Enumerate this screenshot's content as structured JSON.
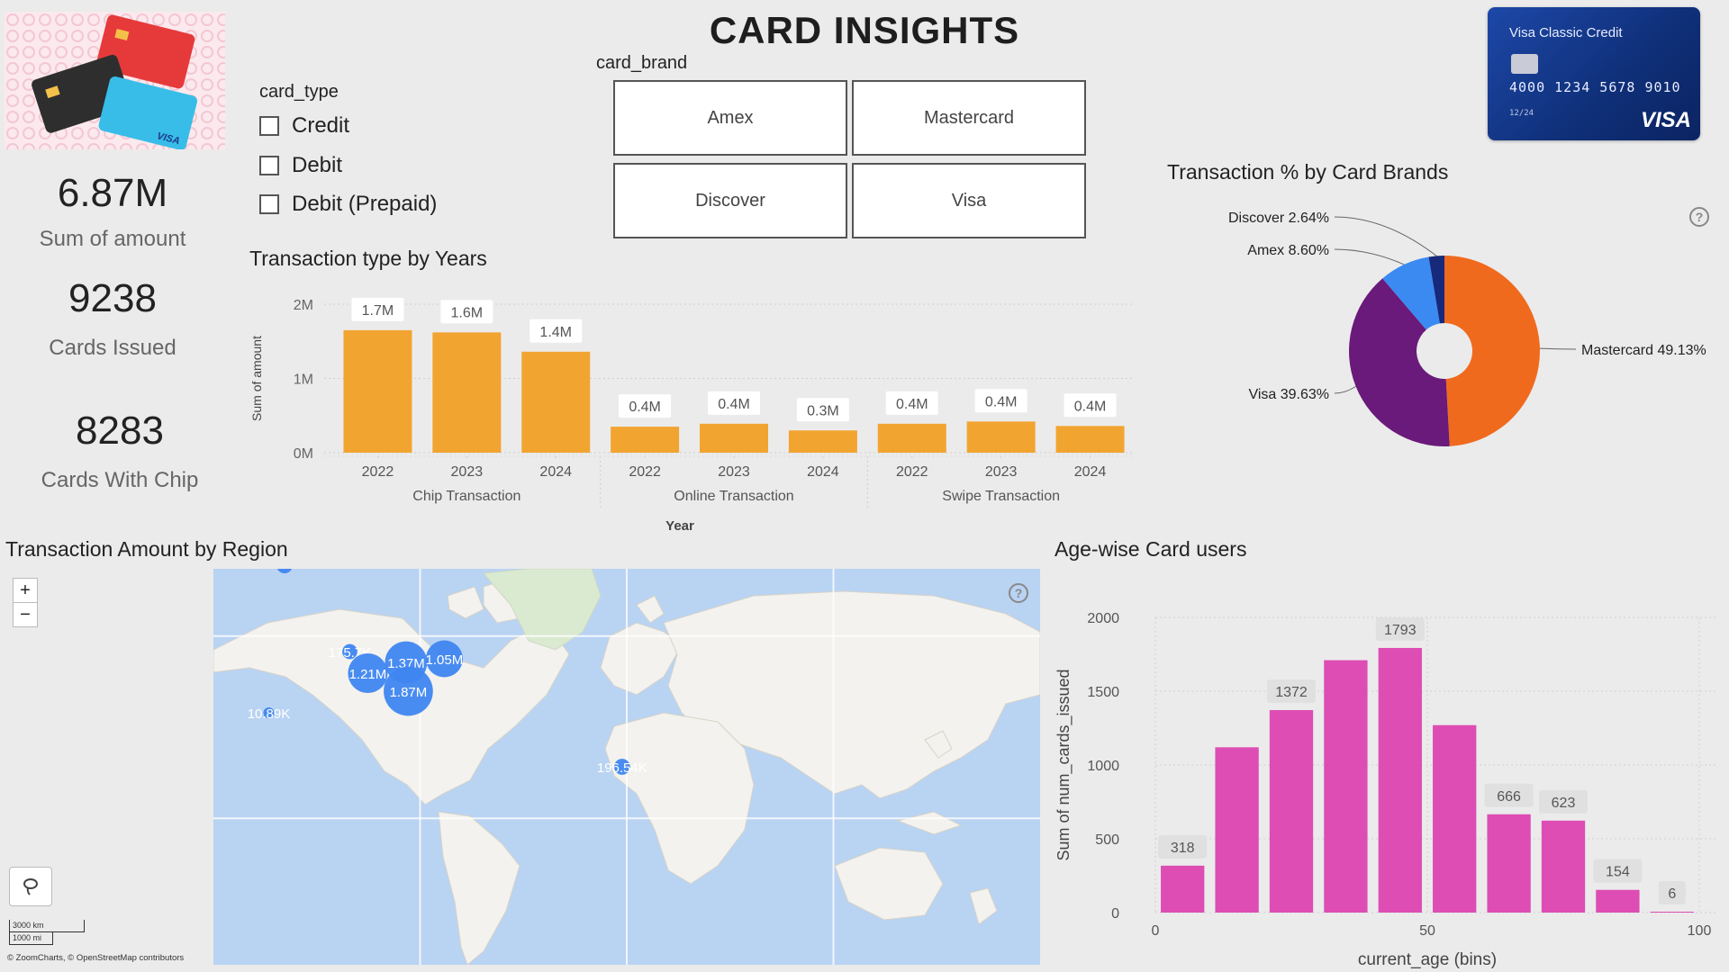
{
  "title": "CARD INSIGHTS",
  "kpis": [
    {
      "value": "6.87M",
      "label": "Sum of amount"
    },
    {
      "value": "9238",
      "label": "Cards Issued"
    },
    {
      "value": "8283",
      "label": "Cards With Chip"
    }
  ],
  "card_type_slicer": {
    "title": "card_type",
    "options": [
      "Credit",
      "Debit",
      "Debit (Prepaid)"
    ]
  },
  "card_brand_slicer": {
    "title": "card_brand",
    "tiles": [
      "Amex",
      "Mastercard",
      "Discover",
      "Visa"
    ]
  },
  "card_image": {
    "title": "Visa Classic Credit",
    "number": "4000 1234 5678 9010",
    "expiry": "12/24",
    "brand": "VISA"
  },
  "chart_data": [
    {
      "type": "bar",
      "title": "Transaction type by Years",
      "xlabel": "Year",
      "ylabel": "Sum of amount",
      "ylim": [
        0,
        2000000
      ],
      "yticks": [
        {
          "v": 0,
          "l": "0M"
        },
        {
          "v": 1000000,
          "l": "1M"
        },
        {
          "v": 2000000,
          "l": "2M"
        }
      ],
      "groups": [
        {
          "name": "Chip Transaction",
          "categories": [
            "2022",
            "2023",
            "2024"
          ],
          "values": [
            1650000,
            1620000,
            1360000
          ],
          "labels": [
            "1.7M",
            "1.6M",
            "1.4M"
          ]
        },
        {
          "name": "Online Transaction",
          "categories": [
            "2022",
            "2023",
            "2024"
          ],
          "values": [
            350000,
            390000,
            300000
          ],
          "labels": [
            "0.4M",
            "0.4M",
            "0.3M"
          ]
        },
        {
          "name": "Swipe Transaction",
          "categories": [
            "2022",
            "2023",
            "2024"
          ],
          "values": [
            390000,
            420000,
            360000
          ],
          "labels": [
            "0.4M",
            "0.4M",
            "0.4M"
          ]
        }
      ],
      "color": "#f2a431",
      "grid": true
    },
    {
      "type": "pie",
      "title": "Transaction % by Card Brands",
      "donut": true,
      "slices": [
        {
          "name": "Mastercard",
          "value": 49.13,
          "label": "Mastercard 49.13%",
          "color": "#f06a1e"
        },
        {
          "name": "Visa",
          "value": 39.63,
          "label": "Visa 39.63%",
          "color": "#6a1a7a"
        },
        {
          "name": "Amex",
          "value": 8.6,
          "label": "Amex 8.60%",
          "color": "#3a8af2"
        },
        {
          "name": "Discover",
          "value": 2.64,
          "label": "Discover 2.64%",
          "color": "#17297a"
        }
      ]
    },
    {
      "type": "bar",
      "title": "Age-wise Card users",
      "xlabel": "current_age (bins)",
      "ylabel": "Sum of num_cards_issued",
      "xlim": [
        0,
        100
      ],
      "ylim": [
        0,
        2000
      ],
      "xticks": [
        0,
        50,
        100
      ],
      "yticks": [
        0,
        500,
        1000,
        1500,
        2000
      ],
      "bins": [
        {
          "x": 10,
          "value": 318,
          "label": "318"
        },
        {
          "x": 20,
          "value": 1120,
          "label": ""
        },
        {
          "x": 30,
          "value": 1372,
          "label": "1372"
        },
        {
          "x": 40,
          "value": 1710,
          "label": ""
        },
        {
          "x": 50,
          "value": 1793,
          "label": "1793"
        },
        {
          "x": 60,
          "value": 1270,
          "label": ""
        },
        {
          "x": 70,
          "value": 666,
          "label": "666"
        },
        {
          "x": 80,
          "value": 623,
          "label": "623"
        },
        {
          "x": 90,
          "value": 154,
          "label": "154"
        },
        {
          "x": 100,
          "value": 6,
          "label": "6"
        }
      ],
      "color": "#dd4db4",
      "grid": true
    },
    {
      "type": "map",
      "title": "Transaction Amount by Region",
      "bubbles": [
        {
          "label": "",
          "lon": -150,
          "lat": 61
        },
        {
          "label": "175.7K",
          "lon": -121,
          "lat": 37
        },
        {
          "label": "1.21M",
          "lon": -113,
          "lat": 31
        },
        {
          "label": "10.89K",
          "lon": -157,
          "lat": 20
        },
        {
          "label": "1.37M",
          "lon": -96,
          "lat": 34
        },
        {
          "label": "1.05M",
          "lon": -79,
          "lat": 35
        },
        {
          "label": "1.87M",
          "lon": -95,
          "lat": 26
        },
        {
          "label": "196.54K",
          "lon": 0,
          "lat": 5
        }
      ],
      "scale": [
        "3000 km",
        "1000 mi"
      ],
      "attribution": "© ZoomCharts, © OpenStreetMap contributors"
    }
  ],
  "map_controls": {
    "zoom_in": "+",
    "zoom_out": "−"
  }
}
